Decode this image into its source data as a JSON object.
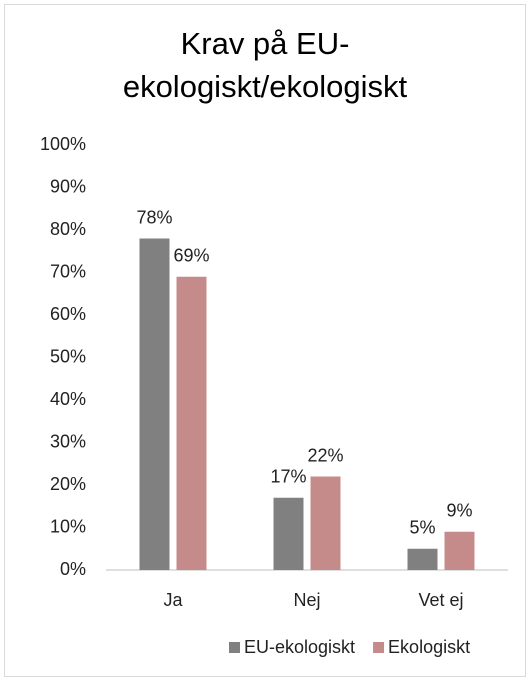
{
  "chart_data": {
    "type": "bar",
    "title": "Krav på EU-ekologiskt/ekologiskt",
    "categories": [
      "Ja",
      "Nej",
      "Vet ej"
    ],
    "series": [
      {
        "name": "EU-ekologiskt",
        "color": "#808080",
        "values": [
          78,
          17,
          5
        ],
        "value_labels": [
          "78%",
          "17%",
          "5%"
        ]
      },
      {
        "name": "Ekologiskt",
        "color": "#c58b8b",
        "values": [
          69,
          22,
          9
        ],
        "value_labels": [
          "69%",
          "22%",
          "9%"
        ]
      }
    ],
    "ylim": [
      0,
      100
    ],
    "yticks": [
      {
        "value": 0,
        "label": "0%"
      },
      {
        "value": 10,
        "label": "10%"
      },
      {
        "value": 20,
        "label": "20%"
      },
      {
        "value": 30,
        "label": "30%"
      },
      {
        "value": 40,
        "label": "40%"
      },
      {
        "value": 50,
        "label": "50%"
      },
      {
        "value": 60,
        "label": "60%"
      },
      {
        "value": 70,
        "label": "70%"
      },
      {
        "value": 80,
        "label": "80%"
      },
      {
        "value": 90,
        "label": "90%"
      },
      {
        "value": 100,
        "label": "100%"
      }
    ],
    "grid": false,
    "legend": "bottom"
  }
}
